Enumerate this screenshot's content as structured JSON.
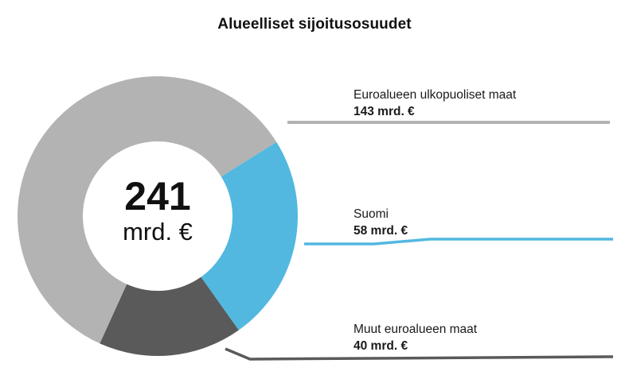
{
  "chart_data": {
    "type": "pie",
    "title": "Alueelliset sijoitusosuudet",
    "center": {
      "value": "241",
      "unit": "mrd. €"
    },
    "slices": [
      {
        "name": "Euroalueen ulkopuoliset maat",
        "label": "143 mrd. €",
        "value": 143,
        "color": "#b3b3b3"
      },
      {
        "name": "Suomi",
        "label": "58 mrd. €",
        "value": 58,
        "color": "#52b8e0"
      },
      {
        "name": "Muut euroalueen maat",
        "label": "40 mrd. €",
        "value": 40,
        "color": "#5a5a5a"
      }
    ],
    "total": 241
  }
}
